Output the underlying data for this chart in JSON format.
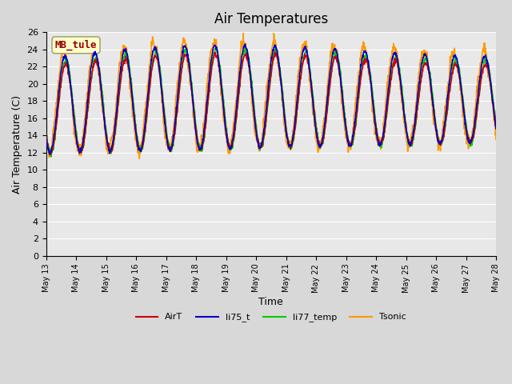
{
  "title": "Air Temperatures",
  "xlabel": "Time",
  "ylabel": "Air Temperature (C)",
  "ylim": [
    0,
    26
  ],
  "yticks": [
    0,
    2,
    4,
    6,
    8,
    10,
    12,
    14,
    16,
    18,
    20,
    22,
    24,
    26
  ],
  "background_color": "#e8e8e8",
  "plot_bg_color": "#e8e8e8",
  "series": {
    "AirT": {
      "color": "#cc0000",
      "lw": 1.2
    },
    "li75_t": {
      "color": "#0000cc",
      "lw": 1.2
    },
    "li77_temp": {
      "color": "#00cc00",
      "lw": 1.2
    },
    "Tsonic": {
      "color": "#ff9900",
      "lw": 1.2
    }
  },
  "legend_labels": [
    "AirT",
    "li75_t",
    "li77_temp",
    "Tsonic"
  ],
  "legend_colors": [
    "#cc0000",
    "#0000cc",
    "#00cc00",
    "#ff9900"
  ],
  "annotation_text": "MB_tule",
  "annotation_color": "#990000",
  "annotation_bg": "#ffffcc",
  "x_start_day": 13,
  "x_end_day": 28,
  "x_tick_days": [
    13,
    14,
    15,
    16,
    17,
    18,
    19,
    20,
    21,
    22,
    23,
    24,
    25,
    26,
    27,
    28
  ],
  "x_tick_labels": [
    "May 13",
    "May 14",
    "May 15",
    "May 16",
    "May 17",
    "May 18",
    "May 19",
    "May 20",
    "May 21",
    "May 22",
    "May 23",
    "May 24",
    "May 25",
    "May 26",
    "May 27",
    "May 28"
  ]
}
